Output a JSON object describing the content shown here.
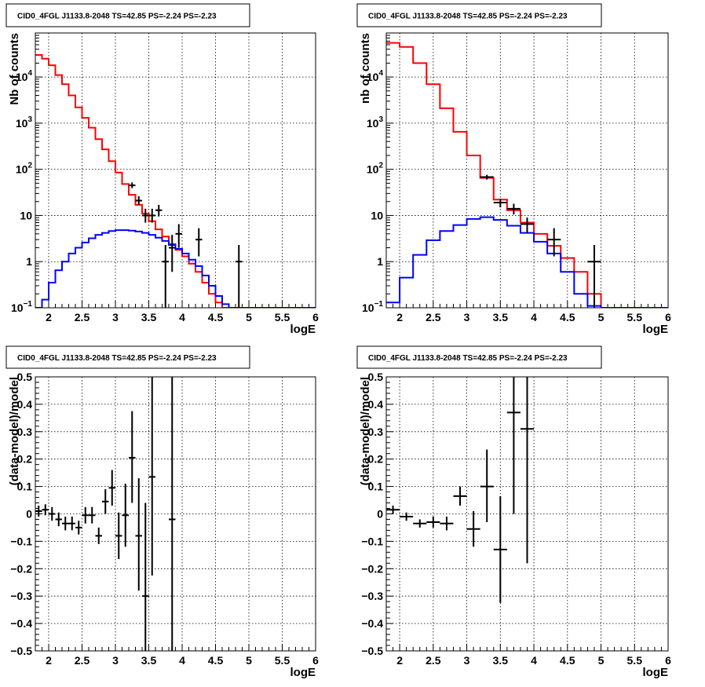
{
  "chart_data": [
    {
      "type": "line",
      "title": "CID0_4FGL J1133.8-2048 TS=42.85 PS=-2.24 PS=-2.23",
      "xlabel": "logE",
      "ylabel": "Nb of counts",
      "xlim": [
        1.8,
        6.0
      ],
      "ylim": [
        0.1,
        90000
      ],
      "yscale": "log",
      "grid": true,
      "x_ticks": [
        "2",
        "2.5",
        "3",
        "3.5",
        "4",
        "4.5",
        "5",
        "5.5",
        "6"
      ],
      "y_ticks": [
        "10^-1",
        "1",
        "10",
        "10^2",
        "10^3",
        "10^4"
      ],
      "bin_edges": [
        1.8,
        1.9,
        2.0,
        2.1,
        2.2,
        2.3,
        2.4,
        2.5,
        2.6,
        2.7,
        2.8,
        2.9,
        3.0,
        3.1,
        3.2,
        3.3,
        3.4,
        3.5,
        3.6,
        3.7,
        3.8,
        3.9,
        4.0,
        4.1,
        4.2,
        4.3,
        4.4,
        4.5,
        4.6,
        4.7,
        4.8,
        4.9,
        5.0,
        5.1,
        5.2,
        5.3,
        5.4,
        5.5,
        5.6,
        5.7,
        5.8,
        5.9,
        6.0
      ],
      "series": [
        {
          "color": "#ff0000",
          "style": "step",
          "values": [
            30000,
            25000,
            18000,
            11000,
            7000,
            4000,
            2200,
            1300,
            800,
            450,
            270,
            150,
            85,
            48,
            28,
            17,
            11,
            7.5,
            5,
            3.5,
            2.4,
            1.8,
            1.3,
            0.9,
            0.6,
            0.35,
            0.2,
            0.13,
            0.1,
            0.1,
            0.1,
            0.1,
            0.1,
            0.1,
            0.1,
            0.1,
            0.1,
            0.1,
            0.1,
            0.1,
            0.1,
            0.1
          ]
        },
        {
          "color": "#0000ff",
          "style": "step",
          "values": [
            0.08,
            0.15,
            0.35,
            0.65,
            1.0,
            1.5,
            2.0,
            2.6,
            3.2,
            3.8,
            4.2,
            4.6,
            4.8,
            4.8,
            4.7,
            4.5,
            4.2,
            3.8,
            3.3,
            2.8,
            2.3,
            1.9,
            1.5,
            1.1,
            0.8,
            0.5,
            0.3,
            0.18,
            0.12,
            0.1,
            0.1,
            0.1,
            0.1,
            0.1,
            0.1,
            0.1,
            0.1,
            0.1,
            0.1,
            0.1,
            0.1,
            0.1
          ]
        },
        {
          "color": "#000000",
          "style": "points",
          "points": [
            {
              "x": 3.25,
              "y": 45,
              "lo": 39,
              "hi": 52
            },
            {
              "x": 3.35,
              "y": 21,
              "lo": 17,
              "hi": 26
            },
            {
              "x": 3.45,
              "y": 10,
              "lo": 7,
              "hi": 14
            },
            {
              "x": 3.55,
              "y": 10,
              "lo": 7,
              "hi": 14
            },
            {
              "x": 3.65,
              "y": 13,
              "lo": 9.5,
              "hi": 17
            },
            {
              "x": 3.75,
              "y": 1,
              "lo": 0.1,
              "hi": 2.3
            },
            {
              "x": 3.85,
              "y": 2,
              "lo": 0.6,
              "hi": 3.8
            },
            {
              "x": 3.95,
              "y": 4,
              "lo": 2,
              "hi": 6.5
            },
            {
              "x": 4.25,
              "y": 3,
              "lo": 1.3,
              "hi": 5.3
            },
            {
              "x": 4.85,
              "y": 1,
              "lo": 0.1,
              "hi": 2.3
            }
          ]
        }
      ]
    },
    {
      "type": "line",
      "title": "CID0_4FGL J1133.8-2048 TS=42.85 PS=-2.24 PS=-2.23",
      "xlabel": "logE",
      "ylabel": "nb of counts",
      "xlim": [
        1.8,
        6.0
      ],
      "ylim": [
        0.1,
        90000
      ],
      "yscale": "log",
      "grid": true,
      "x_ticks": [
        "2",
        "2.5",
        "3",
        "3.5",
        "4",
        "4.5",
        "5",
        "5.5",
        "6"
      ],
      "y_ticks": [
        "10^-1",
        "1",
        "10",
        "10^2",
        "10^3",
        "10^4"
      ],
      "bin_edges": [
        1.8,
        2.0,
        2.2,
        2.4,
        2.6,
        2.8,
        3.0,
        3.2,
        3.4,
        3.6,
        3.8,
        4.0,
        4.2,
        4.4,
        4.6,
        4.8,
        5.0,
        5.2,
        5.4,
        5.6,
        5.8,
        6.0
      ],
      "series": [
        {
          "color": "#ff0000",
          "style": "step",
          "values": [
            55000,
            45000,
            20000,
            7000,
            2100,
            650,
            200,
            65,
            22,
            13,
            7,
            4,
            2.2,
            1.2,
            0.6,
            0.2,
            0.1,
            0.1,
            0.1,
            0.1,
            0.1
          ]
        },
        {
          "color": "#0000ff",
          "style": "step",
          "values": [
            0.13,
            0.45,
            1.4,
            2.9,
            4.6,
            6.2,
            8.4,
            9.2,
            8.0,
            6.0,
            4.2,
            2.7,
            1.5,
            0.6,
            0.2,
            0.11,
            0.1,
            0.1,
            0.1,
            0.1,
            0.1
          ]
        },
        {
          "color": "#000000",
          "style": "points",
          "points": [
            {
              "x": 3.3,
              "y": 68,
              "lo": 60,
              "hi": 76
            },
            {
              "x": 3.5,
              "y": 19,
              "lo": 15,
              "hi": 23
            },
            {
              "x": 3.7,
              "y": 14,
              "lo": 10.5,
              "hi": 18
            },
            {
              "x": 3.9,
              "y": 6.5,
              "lo": 4.2,
              "hi": 9
            },
            {
              "x": 4.3,
              "y": 3,
              "lo": 1.3,
              "hi": 5.3
            },
            {
              "x": 4.9,
              "y": 1,
              "lo": 0.1,
              "hi": 2.3
            }
          ]
        }
      ]
    },
    {
      "type": "scatter",
      "title": "CID0_4FGL J1133.8-2048 TS=42.85 PS=-2.24 PS=-2.23",
      "xlabel": "logE",
      "ylabel": "(data-model)/model",
      "xlim": [
        1.8,
        6.0
      ],
      "ylim": [
        -0.5,
        0.5
      ],
      "grid": true,
      "x_ticks": [
        "2",
        "2.5",
        "3",
        "3.5",
        "4",
        "4.5",
        "5",
        "5.5",
        "6"
      ],
      "y_ticks": [
        "−0.5",
        "−0.4",
        "−0.3",
        "−0.2",
        "−0.1",
        "0",
        "0.1",
        "0.2",
        "0.3",
        "0.4",
        "0.5"
      ],
      "series": [
        {
          "color": "#000000",
          "xerr": 0.05,
          "points": [
            {
              "x": 1.85,
              "y": 0.01,
              "lo": -0.01,
              "hi": 0.03
            },
            {
              "x": 1.95,
              "y": 0.015,
              "lo": -0.005,
              "hi": 0.035
            },
            {
              "x": 2.05,
              "y": 0.0,
              "lo": -0.025,
              "hi": 0.025
            },
            {
              "x": 2.15,
              "y": -0.02,
              "lo": -0.045,
              "hi": 0.005
            },
            {
              "x": 2.25,
              "y": -0.035,
              "lo": -0.06,
              "hi": -0.01
            },
            {
              "x": 2.35,
              "y": -0.035,
              "lo": -0.06,
              "hi": -0.01
            },
            {
              "x": 2.45,
              "y": -0.05,
              "lo": -0.075,
              "hi": -0.025
            },
            {
              "x": 2.55,
              "y": -0.005,
              "lo": -0.035,
              "hi": 0.025
            },
            {
              "x": 2.65,
              "y": -0.005,
              "lo": -0.035,
              "hi": 0.025
            },
            {
              "x": 2.75,
              "y": -0.08,
              "lo": -0.11,
              "hi": -0.05
            },
            {
              "x": 2.85,
              "y": 0.045,
              "lo": 0.0,
              "hi": 0.09
            },
            {
              "x": 2.95,
              "y": 0.095,
              "lo": 0.03,
              "hi": 0.16
            },
            {
              "x": 3.05,
              "y": -0.08,
              "lo": -0.165,
              "hi": 0.005
            },
            {
              "x": 3.15,
              "y": -0.005,
              "lo": -0.12,
              "hi": 0.11
            },
            {
              "x": 3.25,
              "y": 0.205,
              "lo": 0.04,
              "hi": 0.375
            },
            {
              "x": 3.35,
              "y": -0.08,
              "lo": -0.28,
              "hi": 0.13
            },
            {
              "x": 3.45,
              "y": -0.3,
              "lo": -0.5,
              "hi": 0.04
            },
            {
              "x": 3.55,
              "y": 0.135,
              "lo": -0.225,
              "hi": 0.5
            },
            {
              "x": 3.85,
              "y": -0.02,
              "lo": -0.5,
              "hi": 0.5
            }
          ]
        }
      ]
    },
    {
      "type": "scatter",
      "title": "CID0_4FGL J1133.8-2048 TS=42.85 PS=-2.24 PS=-2.23",
      "xlabel": "logE",
      "ylabel": "(data-model)/model",
      "xlim": [
        1.8,
        6.0
      ],
      "ylim": [
        -0.5,
        0.5
      ],
      "grid": true,
      "x_ticks": [
        "2",
        "2.5",
        "3",
        "3.5",
        "4",
        "4.5",
        "5",
        "5.5",
        "6"
      ],
      "y_ticks": [
        "−0.5",
        "−0.4",
        "−0.3",
        "−0.2",
        "−0.1",
        "0",
        "0.1",
        "0.2",
        "0.3",
        "0.4",
        "0.5"
      ],
      "series": [
        {
          "color": "#000000",
          "xerr": 0.1,
          "points": [
            {
              "x": 1.9,
              "y": 0.015,
              "lo": 0.0,
              "hi": 0.03
            },
            {
              "x": 2.1,
              "y": -0.01,
              "lo": -0.025,
              "hi": 0.005
            },
            {
              "x": 2.3,
              "y": -0.035,
              "lo": -0.05,
              "hi": -0.02
            },
            {
              "x": 2.5,
              "y": -0.03,
              "lo": -0.05,
              "hi": -0.01
            },
            {
              "x": 2.7,
              "y": -0.035,
              "lo": -0.06,
              "hi": -0.01
            },
            {
              "x": 2.9,
              "y": 0.065,
              "lo": 0.03,
              "hi": 0.1
            },
            {
              "x": 3.1,
              "y": -0.055,
              "lo": -0.12,
              "hi": 0.01
            },
            {
              "x": 3.3,
              "y": 0.1,
              "lo": -0.03,
              "hi": 0.235
            },
            {
              "x": 3.5,
              "y": -0.13,
              "lo": -0.325,
              "hi": 0.065
            },
            {
              "x": 3.7,
              "y": 0.37,
              "lo": 0.0,
              "hi": 0.5
            },
            {
              "x": 3.9,
              "y": 0.31,
              "lo": -0.18,
              "hi": 0.5
            }
          ]
        }
      ]
    }
  ]
}
